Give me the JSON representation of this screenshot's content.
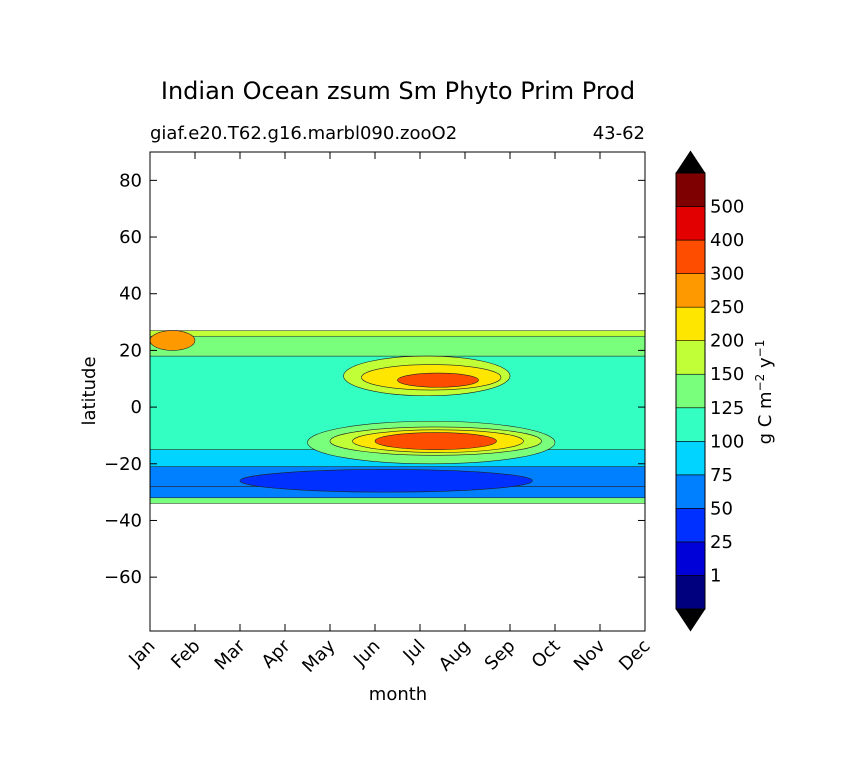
{
  "chart_data": {
    "type": "heatmap",
    "subtype": "filled-contour",
    "title": "Indian Ocean zsum Sm Phyto Prim Prod",
    "subtitle_left": "giaf.e20.T62.g16.marbl090.zooO2",
    "subtitle_right": "43-62",
    "xlabel": "month",
    "ylabel": "latitude",
    "x": [
      "Jan",
      "Feb",
      "Mar",
      "Apr",
      "May",
      "Jun",
      "Jul",
      "Aug",
      "Sep",
      "Oct",
      "Nov",
      "Dec"
    ],
    "ylim": [
      -79,
      90
    ],
    "y_ticks": [
      80,
      60,
      40,
      20,
      0,
      -20,
      -40,
      -60
    ],
    "y_tick_labels": [
      "80",
      "60",
      "40",
      "20",
      "0",
      "−20",
      "−40",
      "−60"
    ],
    "data_extent_lat": [
      -34,
      27
    ],
    "grid": false,
    "colorbar": {
      "label": "g C m⁻² y⁻¹",
      "label_parts": [
        "g C m",
        "−2",
        " y",
        "−1"
      ],
      "extend": "both",
      "levels": [
        1,
        25,
        50,
        75,
        100,
        125,
        150,
        200,
        250,
        300,
        400,
        500
      ],
      "tick_labels": [
        "1",
        "25",
        "50",
        "75",
        "100",
        "125",
        "150",
        "200",
        "250",
        "300",
        "400",
        "500"
      ],
      "colors": [
        "#00007f",
        "#0000d8",
        "#0030ff",
        "#0080ff",
        "#00d4ff",
        "#33ffc3",
        "#7aff7d",
        "#c1ff36",
        "#ffe600",
        "#ff9900",
        "#ff4d00",
        "#e30000",
        "#7f0000"
      ],
      "under_color": "#000000",
      "over_color": "#000000"
    },
    "bands": [
      {
        "lat": [
          -34,
          -32
        ],
        "level": 6,
        "note": "southern edge strip"
      },
      {
        "lat": [
          -32,
          -28
        ],
        "level": 3
      },
      {
        "lat": [
          -28,
          -21
        ],
        "level": 3
      },
      {
        "lat": [
          -21,
          -15
        ],
        "level": 4
      },
      {
        "lat": [
          -15,
          18
        ],
        "level": 5
      },
      {
        "lat": [
          18,
          25
        ],
        "level": 6
      },
      {
        "lat": [
          25,
          27
        ],
        "level": 7
      }
    ],
    "features": [
      {
        "kind": "low",
        "month": [
          2.0,
          8.5
        ],
        "lat": [
          -30,
          -22
        ],
        "level": 2,
        "note": "lowest productivity minimum"
      },
      {
        "kind": "high",
        "month": [
          3.5,
          9.0
        ],
        "lat": [
          -20,
          -5
        ],
        "level": 6
      },
      {
        "kind": "high",
        "month": [
          4.0,
          8.7
        ],
        "lat": [
          -17,
          -7
        ],
        "level": 7
      },
      {
        "kind": "high",
        "month": [
          4.5,
          8.3
        ],
        "lat": [
          -16,
          -8
        ],
        "level": 8
      },
      {
        "kind": "high",
        "month": [
          5.0,
          7.7
        ],
        "lat": [
          -15,
          -9
        ],
        "level": 10,
        "note": "southern summer bloom peak"
      },
      {
        "kind": "high",
        "month": [
          4.3,
          8.0
        ],
        "lat": [
          4,
          18
        ],
        "level": 7
      },
      {
        "kind": "high",
        "month": [
          4.7,
          7.8
        ],
        "lat": [
          6,
          15
        ],
        "level": 8
      },
      {
        "kind": "high",
        "month": [
          5.5,
          7.3
        ],
        "lat": [
          7,
          12
        ],
        "level": 10,
        "note": "northern summer bloom peak"
      },
      {
        "kind": "high",
        "month": [
          0.0,
          1.0
        ],
        "lat": [
          20,
          27
        ],
        "level": 9,
        "note": "January coastal high"
      }
    ]
  }
}
